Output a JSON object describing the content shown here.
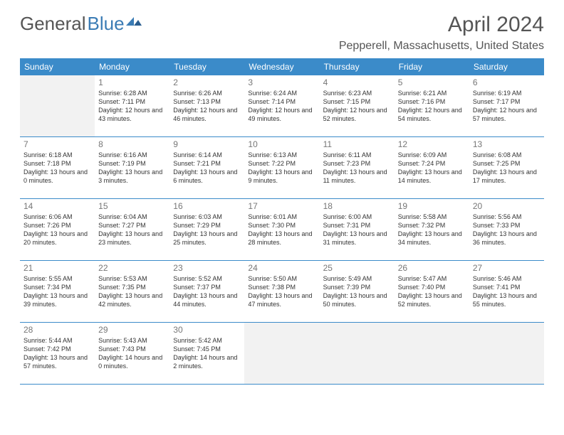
{
  "brand": {
    "name_part1": "General",
    "name_part2": "Blue"
  },
  "title": {
    "month": "April 2024",
    "location": "Pepperell, Massachusetts, United States"
  },
  "colors": {
    "header_bg": "#3b8bc9",
    "header_text": "#ffffff",
    "text": "#333333",
    "muted": "#777777",
    "border": "#3b8bc9",
    "empty_bg": "#f2f2f2",
    "brand_gray": "#555555",
    "brand_blue": "#3b7cb5"
  },
  "day_headers": [
    "Sunday",
    "Monday",
    "Tuesday",
    "Wednesday",
    "Thursday",
    "Friday",
    "Saturday"
  ],
  "weeks": [
    [
      {
        "empty": true
      },
      {
        "num": "1",
        "sunrise": "6:28 AM",
        "sunset": "7:11 PM",
        "daylight": "12 hours and 43 minutes."
      },
      {
        "num": "2",
        "sunrise": "6:26 AM",
        "sunset": "7:13 PM",
        "daylight": "12 hours and 46 minutes."
      },
      {
        "num": "3",
        "sunrise": "6:24 AM",
        "sunset": "7:14 PM",
        "daylight": "12 hours and 49 minutes."
      },
      {
        "num": "4",
        "sunrise": "6:23 AM",
        "sunset": "7:15 PM",
        "daylight": "12 hours and 52 minutes."
      },
      {
        "num": "5",
        "sunrise": "6:21 AM",
        "sunset": "7:16 PM",
        "daylight": "12 hours and 54 minutes."
      },
      {
        "num": "6",
        "sunrise": "6:19 AM",
        "sunset": "7:17 PM",
        "daylight": "12 hours and 57 minutes."
      }
    ],
    [
      {
        "num": "7",
        "sunrise": "6:18 AM",
        "sunset": "7:18 PM",
        "daylight": "13 hours and 0 minutes."
      },
      {
        "num": "8",
        "sunrise": "6:16 AM",
        "sunset": "7:19 PM",
        "daylight": "13 hours and 3 minutes."
      },
      {
        "num": "9",
        "sunrise": "6:14 AM",
        "sunset": "7:21 PM",
        "daylight": "13 hours and 6 minutes."
      },
      {
        "num": "10",
        "sunrise": "6:13 AM",
        "sunset": "7:22 PM",
        "daylight": "13 hours and 9 minutes."
      },
      {
        "num": "11",
        "sunrise": "6:11 AM",
        "sunset": "7:23 PM",
        "daylight": "13 hours and 11 minutes."
      },
      {
        "num": "12",
        "sunrise": "6:09 AM",
        "sunset": "7:24 PM",
        "daylight": "13 hours and 14 minutes."
      },
      {
        "num": "13",
        "sunrise": "6:08 AM",
        "sunset": "7:25 PM",
        "daylight": "13 hours and 17 minutes."
      }
    ],
    [
      {
        "num": "14",
        "sunrise": "6:06 AM",
        "sunset": "7:26 PM",
        "daylight": "13 hours and 20 minutes."
      },
      {
        "num": "15",
        "sunrise": "6:04 AM",
        "sunset": "7:27 PM",
        "daylight": "13 hours and 23 minutes."
      },
      {
        "num": "16",
        "sunrise": "6:03 AM",
        "sunset": "7:29 PM",
        "daylight": "13 hours and 25 minutes."
      },
      {
        "num": "17",
        "sunrise": "6:01 AM",
        "sunset": "7:30 PM",
        "daylight": "13 hours and 28 minutes."
      },
      {
        "num": "18",
        "sunrise": "6:00 AM",
        "sunset": "7:31 PM",
        "daylight": "13 hours and 31 minutes."
      },
      {
        "num": "19",
        "sunrise": "5:58 AM",
        "sunset": "7:32 PM",
        "daylight": "13 hours and 34 minutes."
      },
      {
        "num": "20",
        "sunrise": "5:56 AM",
        "sunset": "7:33 PM",
        "daylight": "13 hours and 36 minutes."
      }
    ],
    [
      {
        "num": "21",
        "sunrise": "5:55 AM",
        "sunset": "7:34 PM",
        "daylight": "13 hours and 39 minutes."
      },
      {
        "num": "22",
        "sunrise": "5:53 AM",
        "sunset": "7:35 PM",
        "daylight": "13 hours and 42 minutes."
      },
      {
        "num": "23",
        "sunrise": "5:52 AM",
        "sunset": "7:37 PM",
        "daylight": "13 hours and 44 minutes."
      },
      {
        "num": "24",
        "sunrise": "5:50 AM",
        "sunset": "7:38 PM",
        "daylight": "13 hours and 47 minutes."
      },
      {
        "num": "25",
        "sunrise": "5:49 AM",
        "sunset": "7:39 PM",
        "daylight": "13 hours and 50 minutes."
      },
      {
        "num": "26",
        "sunrise": "5:47 AM",
        "sunset": "7:40 PM",
        "daylight": "13 hours and 52 minutes."
      },
      {
        "num": "27",
        "sunrise": "5:46 AM",
        "sunset": "7:41 PM",
        "daylight": "13 hours and 55 minutes."
      }
    ],
    [
      {
        "num": "28",
        "sunrise": "5:44 AM",
        "sunset": "7:42 PM",
        "daylight": "13 hours and 57 minutes."
      },
      {
        "num": "29",
        "sunrise": "5:43 AM",
        "sunset": "7:43 PM",
        "daylight": "14 hours and 0 minutes."
      },
      {
        "num": "30",
        "sunrise": "5:42 AM",
        "sunset": "7:45 PM",
        "daylight": "14 hours and 2 minutes."
      },
      {
        "empty": true
      },
      {
        "empty": true
      },
      {
        "empty": true
      },
      {
        "empty": true
      }
    ]
  ],
  "labels": {
    "sunrise": "Sunrise: ",
    "sunset": "Sunset: ",
    "daylight": "Daylight: "
  }
}
